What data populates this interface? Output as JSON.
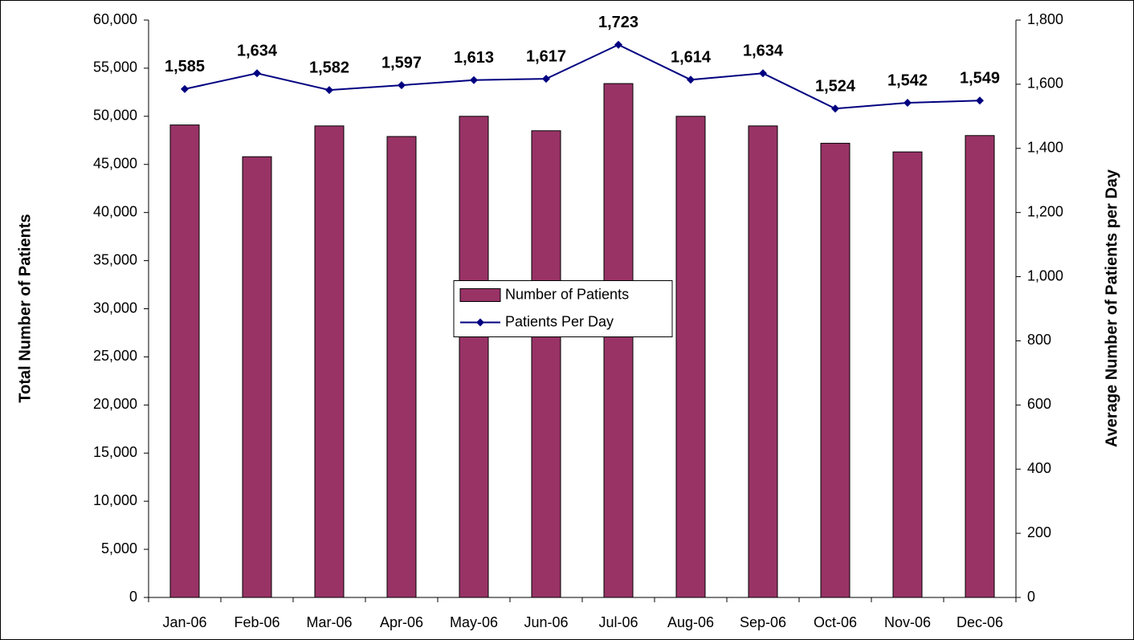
{
  "chart_data": {
    "type": "bar",
    "categories": [
      "Jan-06",
      "Feb-06",
      "Mar-06",
      "Apr-06",
      "May-06",
      "Jun-06",
      "Jul-06",
      "Aug-06",
      "Sep-06",
      "Oct-06",
      "Nov-06",
      "Dec-06"
    ],
    "series": [
      {
        "name": "Number of Patients",
        "type": "bar",
        "color": "#993366",
        "values": [
          49100,
          45800,
          49000,
          47900,
          50000,
          48500,
          53400,
          50000,
          49000,
          47200,
          46300,
          48000
        ]
      },
      {
        "name": "Patients Per Day",
        "type": "line",
        "axis": "y2",
        "color": "#000080",
        "values": [
          1585,
          1634,
          1582,
          1597,
          1613,
          1617,
          1723,
          1614,
          1634,
          1524,
          1542,
          1549
        ],
        "value_labels": [
          "1,585",
          "1,634",
          "1,582",
          "1,597",
          "1,613",
          "1,617",
          "1,723",
          "1,614",
          "1,634",
          "1,524",
          "1,542",
          "1,549"
        ]
      }
    ],
    "y_label": "Total Number of Patients",
    "y2_label": "Average Number of Patients per Day",
    "ylim": [
      0,
      60000
    ],
    "yticks": [
      0,
      {
        "value": 5000,
        "label": "5,000"
      },
      {
        "value": 10000,
        "label": "10,000"
      },
      {
        "value": 15000,
        "label": "15,000"
      },
      {
        "value": 20000,
        "label": "20,000"
      },
      {
        "value": 25000,
        "label": "25,000"
      },
      {
        "value": 30000,
        "label": "30,000"
      },
      {
        "value": 35000,
        "label": "35,000"
      },
      {
        "value": 40000,
        "label": "40,000"
      },
      {
        "value": 45000,
        "label": "45,000"
      },
      {
        "value": 50000,
        "label": "50,000"
      },
      {
        "value": 55000,
        "label": "55,000"
      },
      {
        "value": 60000,
        "label": "60,000"
      }
    ],
    "y2lim": [
      0,
      1800
    ],
    "y2ticks": [
      0,
      200,
      400,
      600,
      800,
      {
        "value": 1000,
        "label": "1,000"
      },
      {
        "value": 1200,
        "label": "1,200"
      },
      {
        "value": 1400,
        "label": "1,400"
      },
      {
        "value": 1600,
        "label": "1,600"
      },
      {
        "value": 1800,
        "label": "1,800"
      }
    ],
    "legend": "center",
    "grid": false
  }
}
